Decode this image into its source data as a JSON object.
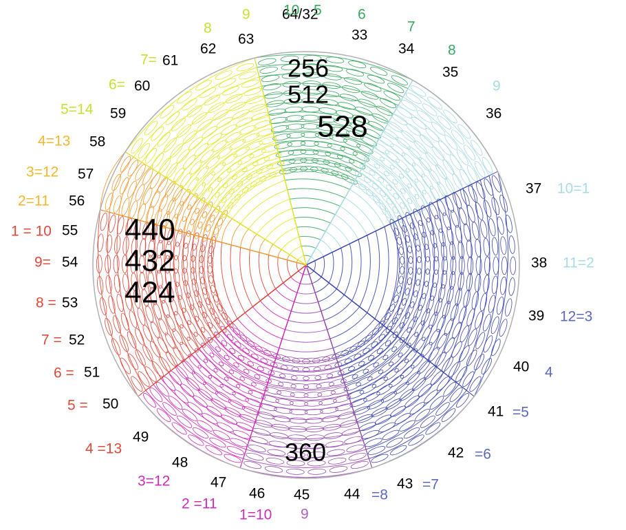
{
  "diagram": {
    "center_values": [
      "256",
      "512",
      "528",
      "440",
      "432",
      "424",
      "360"
    ],
    "ring_numbers": [
      "32",
      "33",
      "34",
      "35",
      "36",
      "37",
      "38",
      "39",
      "40",
      "41",
      "42",
      "43",
      "44",
      "45",
      "46",
      "47",
      "48",
      "49",
      "50",
      "51",
      "52",
      "53",
      "54",
      "55",
      "56",
      "57",
      "58",
      "59",
      "60",
      "61",
      "62",
      "63"
    ],
    "top_label": "64/32",
    "sector_colors": {
      "green": "#3aa860",
      "light_blue": "#a8dce0",
      "blue": "#3e48b0",
      "purple": "#9a4cb0",
      "magenta": "#d02ab8",
      "red": "#e0483a",
      "orange": "#f09a30",
      "yellow": "#e2e82c"
    },
    "colored_labels": [
      {
        "text": "10",
        "color": "#3aa860"
      },
      {
        "text": "5",
        "color": "#3aa860"
      },
      {
        "text": "6",
        "color": "#3aa860"
      },
      {
        "text": "7",
        "color": "#3aa860"
      },
      {
        "text": "8",
        "color": "#3aa860"
      },
      {
        "text": "9",
        "color": "#a8dce0"
      },
      {
        "text": "10=1",
        "color": "#a8dce0"
      },
      {
        "text": "11=2",
        "color": "#a8dce0"
      },
      {
        "text": "12=3",
        "color": "#5a68c0"
      },
      {
        "text": "4",
        "color": "#5a68c0"
      },
      {
        "text": "=5",
        "color": "#5a68c0"
      },
      {
        "text": "=6",
        "color": "#5a68c0"
      },
      {
        "text": "=7",
        "color": "#5a68c0"
      },
      {
        "text": "=8",
        "color": "#5a68c0"
      },
      {
        "text": "9",
        "color": "#b060c0"
      },
      {
        "text": "1=10",
        "color": "#d02ab8"
      },
      {
        "text": "2 =11",
        "color": "#d02ab8"
      },
      {
        "text": "3=12",
        "color": "#d02ab8"
      },
      {
        "text": "4 =13",
        "color": "#e0483a"
      },
      {
        "text": "5 =",
        "color": "#e0483a"
      },
      {
        "text": "6 =",
        "color": "#e0483a"
      },
      {
        "text": "7 =",
        "color": "#e0483a"
      },
      {
        "text": "8 =",
        "color": "#e0483a"
      },
      {
        "text": "9=",
        "color": "#e0483a"
      },
      {
        "text": "1 = 10",
        "color": "#e0483a"
      },
      {
        "text": "2=11",
        "color": "#f0b830"
      },
      {
        "text": "3=12",
        "color": "#f0b830"
      },
      {
        "text": "4=13",
        "color": "#f0b830"
      },
      {
        "text": "5=14",
        "color": "#c8e030"
      },
      {
        "text": "6=",
        "color": "#c8e030"
      },
      {
        "text": "7=",
        "color": "#c8e030"
      },
      {
        "text": "8",
        "color": "#c8e030"
      },
      {
        "text": "9",
        "color": "#c8e030"
      }
    ]
  }
}
